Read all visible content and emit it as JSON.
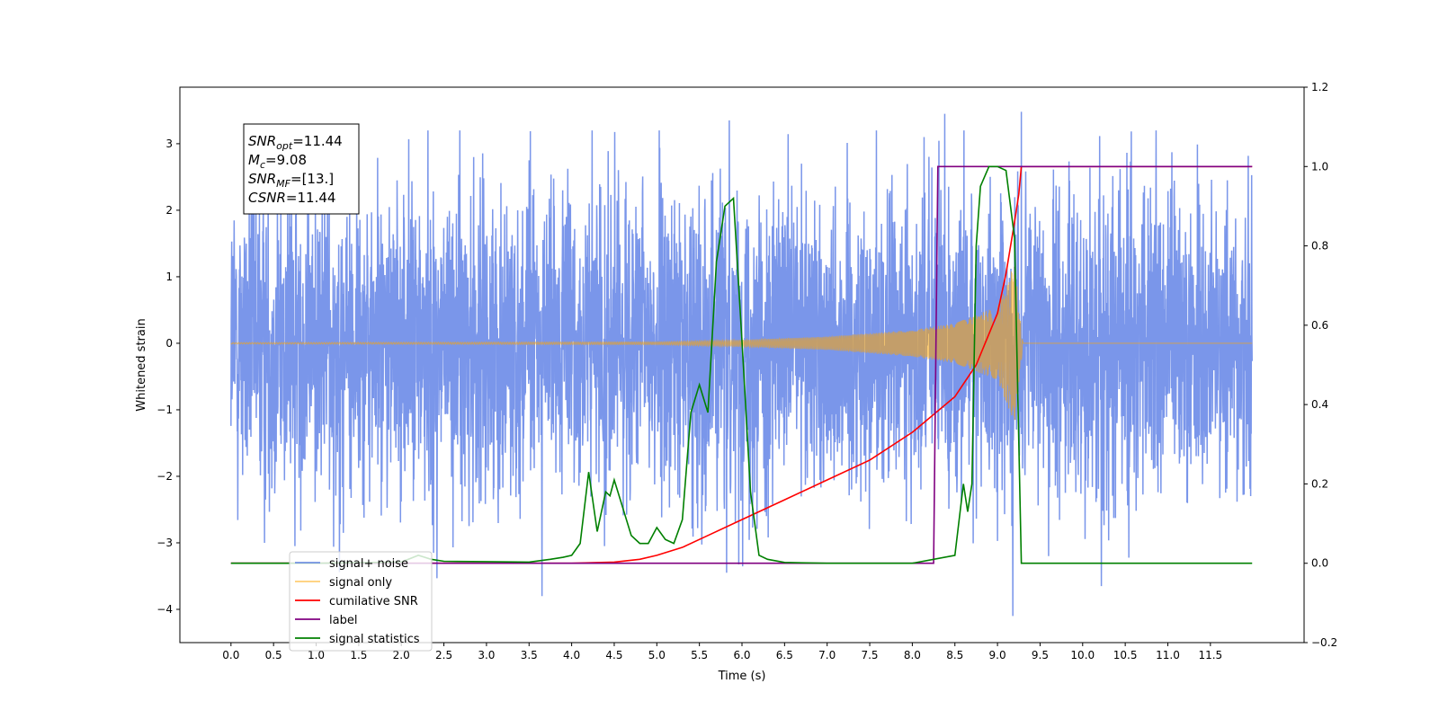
{
  "chart_data": {
    "type": "line",
    "xlabel": "Time (s)",
    "ylabel": "Whitened strain",
    "xlim": [
      -0.6,
      12.6
    ],
    "ylim": [
      -4.5,
      3.85
    ],
    "y2lim": [
      -0.2,
      1.2
    ],
    "x_ticks": [
      0.0,
      0.5,
      1.0,
      1.5,
      2.0,
      2.5,
      3.0,
      3.5,
      4.0,
      4.5,
      5.0,
      5.5,
      6.0,
      6.5,
      7.0,
      7.5,
      8.0,
      8.5,
      9.0,
      9.5,
      10.0,
      10.5,
      11.0,
      11.5
    ],
    "x_tick_labels": [
      "0.0",
      "0.5",
      "1.0",
      "1.5",
      "2.0",
      "2.5",
      "3.0",
      "3.5",
      "4.0",
      "4.5",
      "5.0",
      "5.5",
      "6.0",
      "6.5",
      "7.0",
      "7.5",
      "8.0",
      "8.5",
      "9.0",
      "9.5",
      "10.0",
      "10.5",
      "11.0",
      "11.5"
    ],
    "y_ticks": [
      3,
      2,
      1,
      0,
      -1,
      -2,
      -3,
      -4
    ],
    "y_tick_labels": [
      "3",
      "2",
      "1",
      "0",
      "−1",
      "−2",
      "−3",
      "−4"
    ],
    "y2_ticks": [
      1.2,
      1.0,
      0.8,
      0.6,
      0.4,
      0.2,
      0.0,
      -0.2
    ],
    "y2_tick_labels": [
      "1.2",
      "1.0",
      "0.8",
      "0.6",
      "0.4",
      "0.2",
      "0.0",
      "−0.2"
    ],
    "grid": false,
    "legend_position": "lower-left",
    "annotation": {
      "lines": [
        {
          "sym": "SNR",
          "sub": "opt",
          "val": "=11.44"
        },
        {
          "sym": "M",
          "sub": "c",
          "val": "=9.08"
        },
        {
          "sym": "SNR",
          "sub": "MF",
          "val": "=[13.]"
        },
        {
          "sym": "CSNR",
          "sub": "",
          "val": "=11.44"
        }
      ]
    },
    "series": [
      {
        "name": "signal+ noise",
        "axis": "left",
        "color": "#4169e1",
        "kind": "noise-band",
        "t_start": 0.0,
        "t_end": 11.99,
        "typical_envelope": [
          -1.6,
          1.6
        ],
        "visible_range": [
          -4.1,
          3.5
        ],
        "peaks": [
          {
            "x": 5.85,
            "y": 3.35
          },
          {
            "x": 8.38,
            "y": 3.45
          },
          {
            "x": 9.28,
            "y": 3.48
          },
          {
            "x": 5.82,
            "y": -3.45
          },
          {
            "x": 9.18,
            "y": -4.1
          },
          {
            "x": 10.22,
            "y": -3.65
          },
          {
            "x": 0.75,
            "y": -3.05
          },
          {
            "x": 1.32,
            "y": -2.85
          },
          {
            "x": 2.38,
            "y": -3.15
          },
          {
            "x": 3.5,
            "y": 2.75
          },
          {
            "x": 2.85,
            "y": 2.8
          },
          {
            "x": 1.1,
            "y": 2.75
          },
          {
            "x": 6.7,
            "y": 2.7
          },
          {
            "x": 11.7,
            "y": 2.45
          },
          {
            "x": 9.6,
            "y": -3.2
          }
        ]
      },
      {
        "name": "signal only",
        "axis": "left",
        "color": "#ffa500",
        "kind": "chirp",
        "t_start": 0.0,
        "t_merger": 9.3,
        "amplitude_at": [
          {
            "x": 0.0,
            "y": 0.01
          },
          {
            "x": 5.0,
            "y": 0.02
          },
          {
            "x": 6.0,
            "y": 0.05
          },
          {
            "x": 7.0,
            "y": 0.1
          },
          {
            "x": 8.0,
            "y": 0.2
          },
          {
            "x": 8.5,
            "y": 0.3
          },
          {
            "x": 9.0,
            "y": 0.55
          },
          {
            "x": 9.2,
            "y": 1.2
          },
          {
            "x": 9.3,
            "y": 0.0
          }
        ]
      },
      {
        "name": "cumilative SNR",
        "axis": "right",
        "color": "#ff0000",
        "x": [
          0.0,
          4.0,
          4.5,
          4.8,
          5.0,
          5.3,
          5.6,
          6.0,
          6.5,
          7.0,
          7.5,
          8.0,
          8.5,
          8.75,
          9.0,
          9.1,
          9.2,
          9.25,
          9.28,
          9.3,
          10.0,
          11.0,
          11.99
        ],
        "values": [
          0.0,
          0.0,
          0.003,
          0.01,
          0.02,
          0.04,
          0.07,
          0.11,
          0.16,
          0.21,
          0.26,
          0.33,
          0.42,
          0.5,
          0.63,
          0.73,
          0.86,
          0.93,
          1.0,
          1.0,
          1.0,
          1.0,
          1.0
        ]
      },
      {
        "name": "label",
        "axis": "right",
        "color": "#800080",
        "x": [
          0.0,
          6.5,
          8.25,
          8.3,
          9.0,
          9.25,
          9.27,
          11.99
        ],
        "values": [
          0.0,
          0.0,
          0.0,
          1.0,
          1.0,
          1.0,
          1.0,
          1.0
        ]
      },
      {
        "name": "signal statistics",
        "axis": "right",
        "color": "#008000",
        "x": [
          0.0,
          1.0,
          2.0,
          2.2,
          2.35,
          2.5,
          3.0,
          3.5,
          3.75,
          3.9,
          4.0,
          4.1,
          4.2,
          4.3,
          4.4,
          4.45,
          4.5,
          4.6,
          4.7,
          4.8,
          4.9,
          5.0,
          5.1,
          5.2,
          5.3,
          5.4,
          5.5,
          5.6,
          5.7,
          5.8,
          5.9,
          6.0,
          6.1,
          6.2,
          6.3,
          6.5,
          7.0,
          8.0,
          8.5,
          8.6,
          8.65,
          8.7,
          8.75,
          8.8,
          8.9,
          9.0,
          9.1,
          9.2,
          9.28,
          9.3,
          10.0,
          11.0,
          11.99
        ],
        "values": [
          0.0,
          0.0,
          0.003,
          0.02,
          0.01,
          0.005,
          0.004,
          0.003,
          0.01,
          0.015,
          0.02,
          0.05,
          0.23,
          0.08,
          0.18,
          0.17,
          0.21,
          0.14,
          0.07,
          0.05,
          0.05,
          0.09,
          0.06,
          0.05,
          0.11,
          0.38,
          0.45,
          0.38,
          0.76,
          0.9,
          0.92,
          0.56,
          0.18,
          0.02,
          0.01,
          0.002,
          0.0,
          0.0,
          0.02,
          0.2,
          0.13,
          0.2,
          0.8,
          0.95,
          1.0,
          1.0,
          0.99,
          0.82,
          0.0,
          0.0,
          0.0,
          0.0,
          0.0
        ]
      }
    ],
    "legend_entries": [
      {
        "label": "signal+ noise",
        "color": "#4169e1",
        "alpha": 0.7
      },
      {
        "label": "signal only",
        "color": "#ffa500",
        "alpha": 0.55
      },
      {
        "label": "cumilative SNR",
        "color": "#ff0000",
        "alpha": 1
      },
      {
        "label": "label",
        "color": "#800080",
        "alpha": 1
      },
      {
        "label": "signal statistics",
        "color": "#008000",
        "alpha": 1
      }
    ]
  }
}
